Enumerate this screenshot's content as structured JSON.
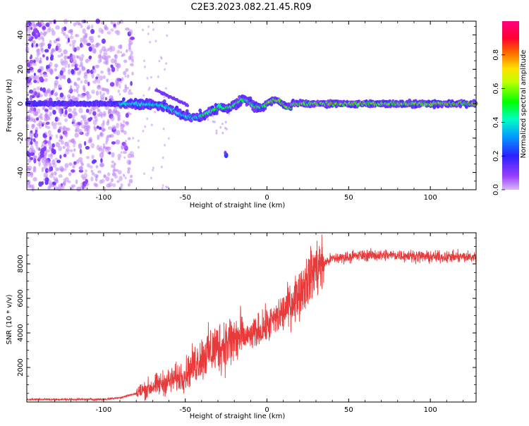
{
  "title": "C2E3.2023.082.21.45.R09",
  "colors": {
    "snr_line": "#e83a3a",
    "frame": "#000000",
    "background": "#ffffff"
  },
  "chart_data": [
    {
      "type": "heatmap",
      "xlabel": "Height of straight line (km)",
      "ylabel": "Frequency (Hz)",
      "xlim": [
        -147,
        128
      ],
      "ylim": [
        -50,
        48
      ],
      "x_ticks": [
        -100,
        -50,
        0,
        50,
        100
      ],
      "y_ticks": [
        -40,
        -20,
        0,
        20,
        40
      ],
      "colorbar": {
        "label": "Normalized spectral amplitude",
        "range": [
          0,
          1
        ],
        "ticks": [
          0.0,
          0.2,
          0.4,
          0.6,
          0.8
        ],
        "colormap": "rainbow (purple-blue-cyan-green-yellow-red-magenta)"
      },
      "features": {
        "noise_region_x": [
          -147,
          -90
        ],
        "carrier_frequency_hz": 0,
        "carrier_strengthens_after_x": 0,
        "doppler_dip": {
          "x": -45,
          "frequency_hz": -8
        },
        "isolated_blob": {
          "x": -25,
          "frequency_hz": -30
        }
      }
    },
    {
      "type": "line",
      "xlabel": "Height of straight line (km)",
      "ylabel": "SNR (10 * v/v)",
      "xlim": [
        -147,
        128
      ],
      "ylim": [
        0,
        9800
      ],
      "x_ticks": [
        -100,
        -50,
        0,
        50,
        100
      ],
      "y_ticks": [
        2000,
        4000,
        6000,
        8000
      ],
      "series": [
        {
          "x": [
            -147,
            -120,
            -100,
            -90,
            -80,
            -70,
            -60,
            -50,
            -40,
            -30,
            -20,
            -10,
            0,
            10,
            20,
            30,
            40,
            50,
            60,
            80,
            100,
            128
          ],
          "y": [
            150,
            150,
            150,
            250,
            500,
            900,
            1200,
            1600,
            2600,
            3200,
            3600,
            3800,
            4400,
            5200,
            6400,
            7800,
            8300,
            8400,
            8500,
            8500,
            8400,
            8400
          ]
        }
      ]
    }
  ]
}
